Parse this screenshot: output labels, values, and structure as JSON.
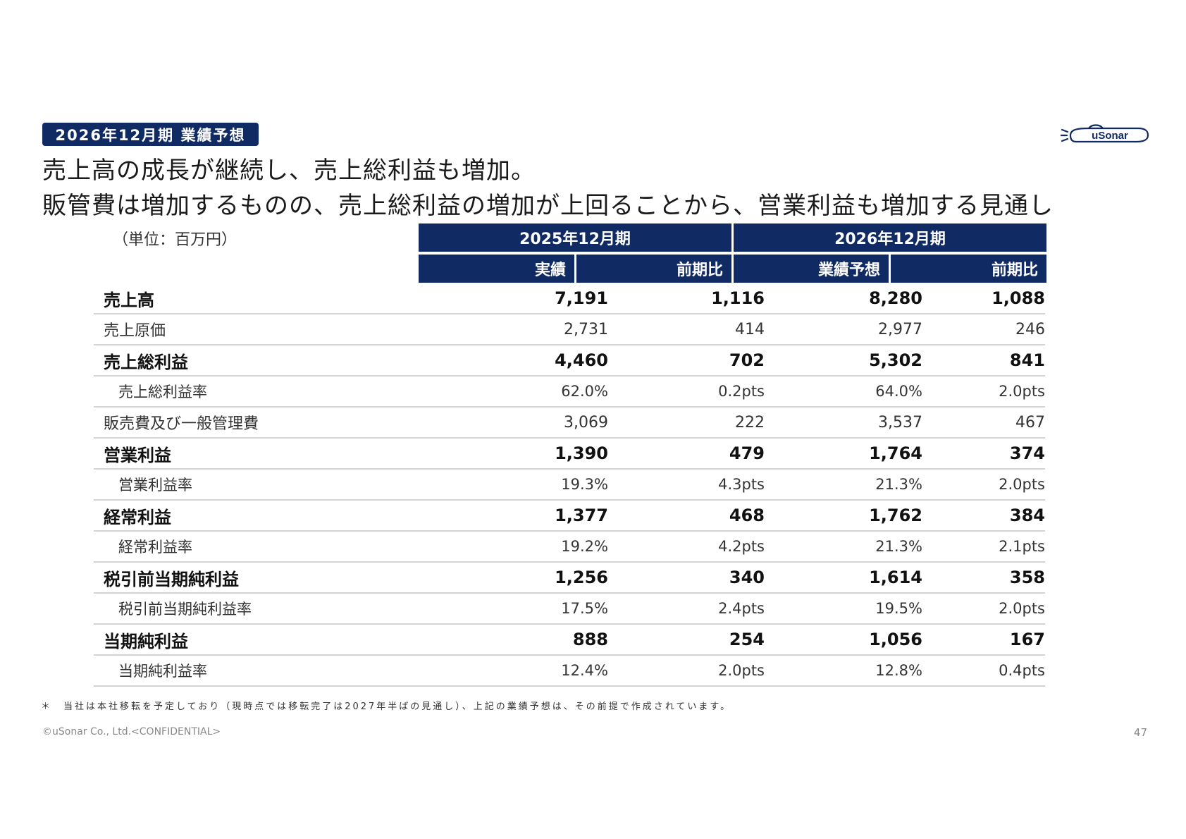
{
  "badge": "2026年12月期 業績予想",
  "headline": {
    "line1": "売上高の成長が継続し、売上総利益も増加。",
    "line2": "販管費は増加するものの、売上総利益の増加が上回ることから、営業利益も増加する見通し"
  },
  "logo": {
    "text": "uSonar",
    "color": "#102a63"
  },
  "unit_label": "（単位：百万円）",
  "table": {
    "period_headers": [
      "2025年12月期",
      "2026年12月期"
    ],
    "sub_headers": [
      "実績",
      "前期比",
      "業績予想",
      "前期比"
    ],
    "rows": [
      {
        "label": "売上高",
        "values": [
          "7,191",
          "1,116",
          "8,280",
          "1,088"
        ]
      },
      {
        "label": "売上原価",
        "values": [
          "2,731",
          "414",
          "2,977",
          "246"
        ]
      },
      {
        "label": "売上総利益",
        "values": [
          "4,460",
          "702",
          "5,302",
          "841"
        ]
      },
      {
        "label": "売上総利益率",
        "values": [
          "62.0%",
          "0.2pts",
          "64.0%",
          "2.0pts"
        ]
      },
      {
        "label": "販売費及び一般管理費",
        "values": [
          "3,069",
          "222",
          "3,537",
          "467"
        ]
      },
      {
        "label": "営業利益",
        "values": [
          "1,390",
          "479",
          "1,764",
          "374"
        ]
      },
      {
        "label": "営業利益率",
        "values": [
          "19.3%",
          "4.3pts",
          "21.3%",
          "2.0pts"
        ]
      },
      {
        "label": "経常利益",
        "values": [
          "1,377",
          "468",
          "1,762",
          "384"
        ]
      },
      {
        "label": "経常利益率",
        "values": [
          "19.2%",
          "4.2pts",
          "21.3%",
          "2.1pts"
        ]
      },
      {
        "label": "税引前当期純利益",
        "values": [
          "1,256",
          "340",
          "1,614",
          "358"
        ]
      },
      {
        "label": "税引前当期純利益率",
        "values": [
          "17.5%",
          "2.4pts",
          "19.5%",
          "2.0pts"
        ]
      },
      {
        "label": "当期純利益",
        "values": [
          "888",
          "254",
          "1,056",
          "167"
        ]
      },
      {
        "label": "当期純利益率",
        "values": [
          "12.4%",
          "2.0pts",
          "12.8%",
          "0.4pts"
        ]
      }
    ]
  },
  "footnote": "＊　当社は本社移転を予定しており（現時点では移転完了は2027年半ばの見通し）、上記の業績予想は、その前提で作成されています。",
  "copyright": "©uSonar Co., Ltd.<CONFIDENTIAL>",
  "page_number": "47"
}
